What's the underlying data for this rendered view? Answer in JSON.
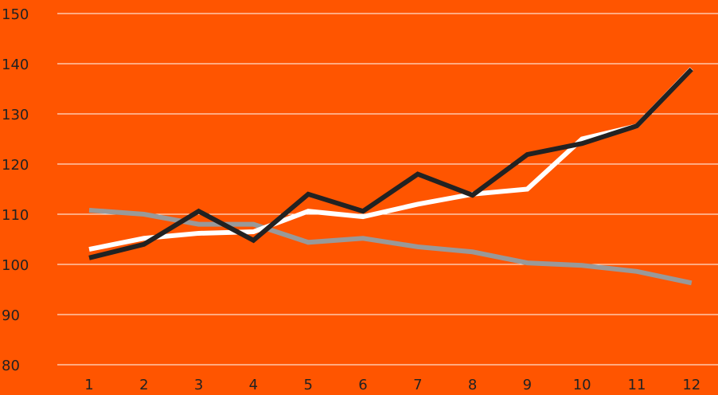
{
  "chart_data": {
    "type": "line",
    "categories": [
      "1",
      "2",
      "3",
      "4",
      "5",
      "6",
      "7",
      "8",
      "9",
      "10",
      "11",
      "12"
    ],
    "series": [
      {
        "color": "#999999",
        "values": [
          110.8,
          110,
          108,
          108,
          104.4,
          105.2,
          103.5,
          102.5,
          100.3,
          99.8,
          98.6,
          96.3
        ]
      },
      {
        "color": "#ffffff",
        "values": [
          103,
          105.2,
          106.2,
          106.5,
          110.6,
          109.5,
          112,
          114,
          115,
          125,
          127.6,
          139
        ]
      },
      {
        "color": "#222222",
        "values": [
          101.3,
          104,
          110.6,
          104.8,
          114,
          110.6,
          118,
          113.8,
          121.9,
          124.1,
          127.6,
          138.9
        ]
      }
    ],
    "ylim": [
      80,
      150
    ],
    "yticks": [
      80,
      90,
      100,
      110,
      120,
      130,
      140,
      150
    ],
    "grid": true
  }
}
